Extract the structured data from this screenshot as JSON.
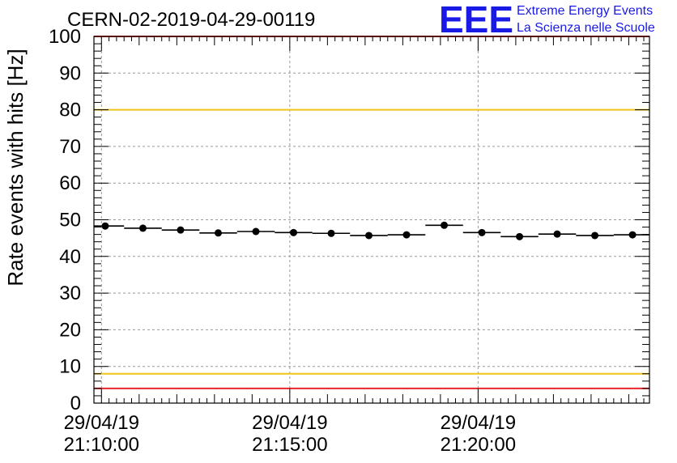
{
  "chart_data": {
    "type": "scatter",
    "title": "CERN-02-2019-04-29-00119",
    "ylabel": "Rate events with hits [Hz]",
    "xlabel": "",
    "ylim": [
      0,
      100
    ],
    "yticks": [
      0,
      10,
      20,
      30,
      40,
      50,
      60,
      70,
      80,
      90,
      100
    ],
    "xlim_minutes": [
      -0.2,
      14.55
    ],
    "grid": true,
    "xtick_labels": [
      {
        "minute": 0,
        "date": "29/04/19",
        "time": "21:10:00"
      },
      {
        "minute": 5,
        "date": "29/04/19",
        "time": "21:15:00"
      },
      {
        "minute": 10,
        "date": "29/04/19",
        "time": "21:20:00"
      }
    ],
    "series": [
      {
        "name": "rate",
        "bin_width_minutes": 1,
        "x_minutes": [
          0.1,
          1.1,
          2.1,
          3.1,
          4.1,
          5.1,
          6.1,
          7.1,
          8.1,
          9.1,
          10.1,
          11.1,
          12.1,
          13.1,
          14.1
        ],
        "values": [
          48.3,
          47.7,
          47.2,
          46.4,
          46.8,
          46.5,
          46.3,
          45.7,
          45.9,
          48.5,
          46.5,
          45.4,
          46.1,
          45.7,
          45.9
        ]
      }
    ],
    "reference_lines": [
      {
        "y": 100,
        "color": "#e8262a"
      },
      {
        "y": 80,
        "color": "#f0c419"
      },
      {
        "y": 8,
        "color": "#f0c419"
      },
      {
        "y": 4,
        "color": "#e8262a"
      }
    ]
  },
  "logo": {
    "text": "EEE",
    "line1": "Extreme Energy Events",
    "line2": "La Scienza nelle Scuole",
    "color": "#1a1ae6"
  }
}
